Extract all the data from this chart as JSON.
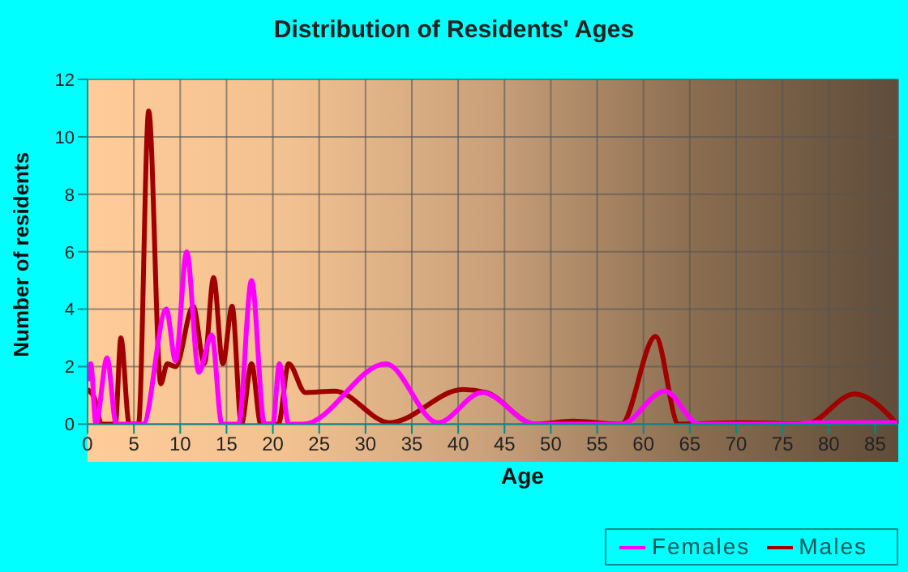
{
  "chart_data": {
    "type": "line",
    "title": "Distribution of Residents' Ages",
    "xlabel": "Age",
    "ylabel": "Number of residents",
    "xlim": [
      0,
      87.5
    ],
    "xticks": [
      0,
      5,
      10,
      15,
      20,
      25,
      30,
      35,
      40,
      45,
      50,
      55,
      60,
      65,
      70,
      75,
      80,
      85
    ],
    "ylim": [
      0,
      12
    ],
    "yticks": [
      0,
      2,
      4,
      6,
      8,
      10,
      12
    ],
    "grid": true,
    "legend": "bottom right",
    "marker": "none",
    "line_style": "solid",
    "series": [
      {
        "name": "Males",
        "color": "#a00000",
        "x": [
          0,
          0.75,
          1.5,
          3,
          3.6,
          4.5,
          5.5,
          6.6,
          7.9,
          8.6,
          9.5,
          11.4,
          12.6,
          13.6,
          14.6,
          15.6,
          16.6,
          17.7,
          18.7,
          20.6,
          21.7,
          23.5,
          26.7,
          32.6,
          40.5,
          43,
          48.3,
          52.4,
          57.6,
          61.3,
          63.8,
          70.5,
          77.5,
          82.8,
          87.4
        ],
        "values": [
          1.2,
          0.9,
          0,
          0,
          3,
          0,
          0,
          10.9,
          1.4,
          2.1,
          2,
          4.1,
          2.1,
          5.1,
          2.1,
          4.1,
          0,
          2.1,
          0,
          0,
          2.1,
          1.1,
          1.15,
          0.05,
          1.2,
          1.1,
          0,
          0.1,
          0,
          3.05,
          0,
          0.05,
          0,
          1.05,
          0
        ]
      },
      {
        "name": "Females",
        "color": "#ff00ff",
        "x": [
          0,
          0.35,
          0.9,
          2.1,
          3.1,
          6,
          8.5,
          9.5,
          10.7,
          12,
          13.4,
          14.5,
          16.3,
          17.7,
          19.1,
          20,
          20.7,
          21.7,
          23.3,
          32.2,
          37.8,
          42.6,
          48.3,
          57.6,
          62.3,
          66,
          77,
          78,
          87.4
        ],
        "values": [
          1.5,
          2.1,
          0,
          2.3,
          0,
          0,
          4,
          2.2,
          6,
          1.8,
          3.1,
          0,
          0,
          5,
          0,
          0,
          2.1,
          0,
          0,
          2.1,
          0.05,
          1.1,
          0,
          0,
          1.15,
          0,
          0,
          0.05,
          0.05
        ]
      }
    ]
  }
}
